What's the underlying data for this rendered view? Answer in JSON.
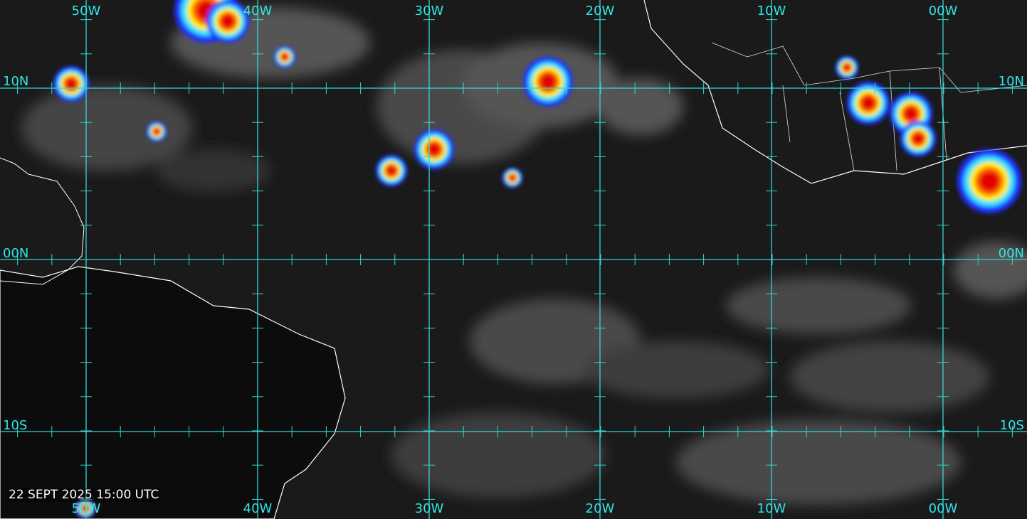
{
  "timestamp": "22 SEPT 2025 15:00 UTC",
  "longitude_labels": [
    "50W",
    "40W",
    "30W",
    "20W",
    "10W",
    "00W"
  ],
  "latitude_labels": [
    "10N",
    "00N",
    "10S"
  ],
  "colors": {
    "grid": "#33d6d6",
    "label": "#33e6e6",
    "coastline": "#ffffff",
    "background": "#1a1a1a"
  },
  "imagery": "infrared satellite with enhanced convection color scale"
}
